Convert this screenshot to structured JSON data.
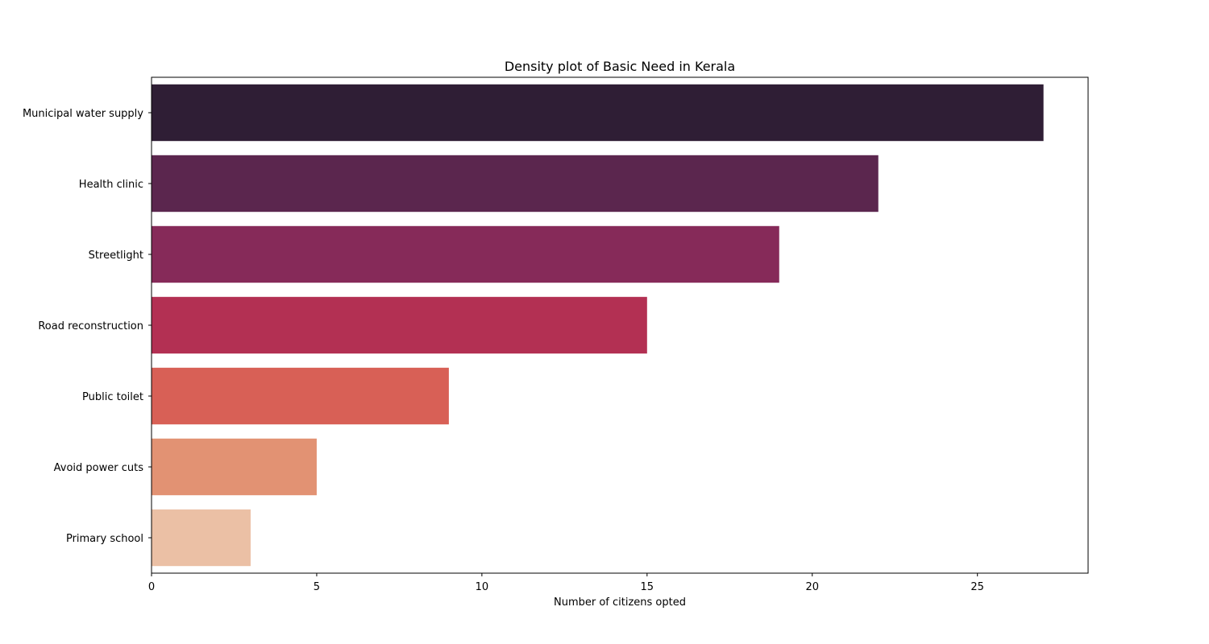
{
  "chart_data": {
    "type": "bar",
    "orientation": "horizontal",
    "title": "Density plot of Basic Need in Kerala",
    "xlabel": "Number of citizens opted",
    "ylabel": "",
    "xlim": [
      0,
      28.35
    ],
    "xticks": [
      0,
      5,
      10,
      15,
      20,
      25
    ],
    "grid": false,
    "categories": [
      "Municipal water supply",
      "Health clinic",
      "Streetlight",
      "Road reconstruction",
      "Public toilet",
      "Avoid power cuts",
      "Primary school"
    ],
    "values": [
      27,
      22,
      19,
      15,
      9,
      5,
      3
    ],
    "colors": [
      "#2f1e35",
      "#5b264e",
      "#862a59",
      "#b33053",
      "#d86056",
      "#e29273",
      "#ebc0a5"
    ]
  }
}
